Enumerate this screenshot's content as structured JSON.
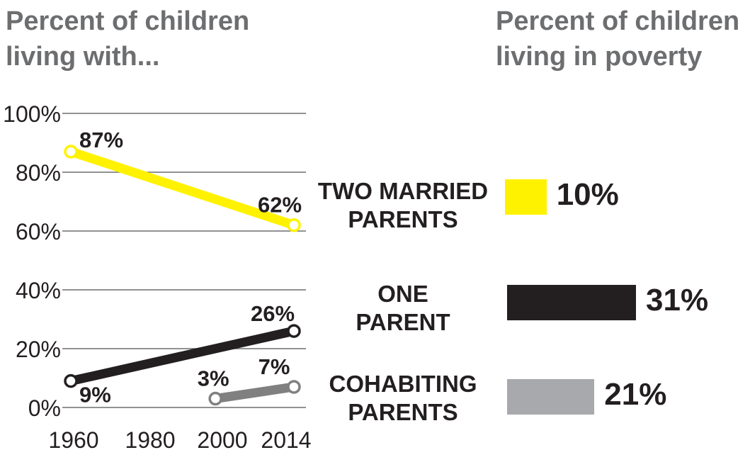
{
  "titles": {
    "left": "Percent of children\nliving with...",
    "right": "Percent of children\nliving in poverty"
  },
  "colors": {
    "two_married": "#fff200",
    "one_parent": "#231f20",
    "cohabiting": "#808080",
    "grid": "#6d6e70",
    "text": "#231f20"
  },
  "chart_data": [
    {
      "type": "line",
      "title": "Percent of children living with...",
      "xlabel": "",
      "ylabel": "",
      "xlim": [
        1960,
        2014
      ],
      "ylim": [
        0,
        100
      ],
      "x_ticks": [
        "1960",
        "1980",
        "2000",
        "2014"
      ],
      "y_ticks": [
        "0%",
        "20%",
        "40%",
        "60%",
        "80%",
        "100%"
      ],
      "grid": true,
      "series": [
        {
          "key": "two_married",
          "color": "#fff200",
          "x": [
            1960,
            2014
          ],
          "y": [
            87,
            62
          ],
          "labels": [
            "87%",
            "62%"
          ]
        },
        {
          "key": "one_parent",
          "color": "#231f20",
          "x": [
            1960,
            2014
          ],
          "y": [
            9,
            26
          ],
          "labels": [
            "9%",
            "26%"
          ]
        },
        {
          "key": "cohabiting",
          "color": "#808080",
          "x": [
            1995,
            2014
          ],
          "y": [
            3,
            7
          ],
          "labels": [
            "3%",
            "7%"
          ]
        }
      ]
    },
    {
      "type": "bar",
      "title": "Percent of children living in poverty",
      "categories": [
        "TWO MARRIED\nPARENTS",
        "ONE\nPARENT",
        "COHABITING\nPARENTS"
      ],
      "values": [
        10,
        31,
        21
      ],
      "value_labels": [
        "10%",
        "31%",
        "21%"
      ],
      "colors": [
        "#fff200",
        "#231f20",
        "#a7a9ac"
      ]
    }
  ]
}
